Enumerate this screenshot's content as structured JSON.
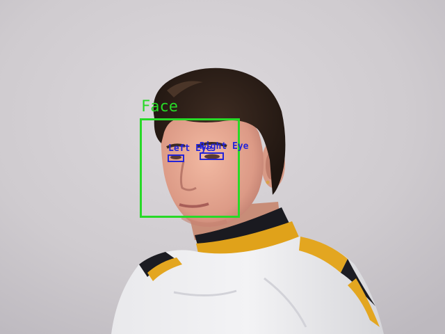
{
  "colors": {
    "face_box": "#27d927",
    "eye_box": "#2424d8"
  },
  "detections": {
    "face": {
      "label": "Face"
    },
    "left_eye": {
      "label": "Left Eye"
    },
    "right_eye": {
      "label": "Right Eye"
    }
  }
}
